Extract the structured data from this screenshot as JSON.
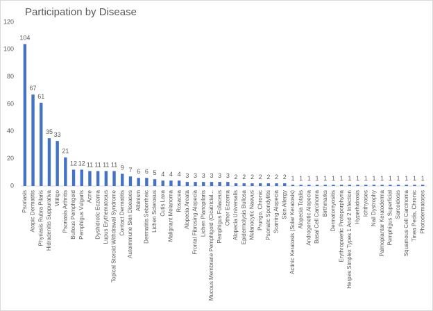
{
  "chart_data": {
    "type": "bar",
    "title": "Participation by Disease",
    "categories": [
      "Psoriasis",
      "Atopic Dermatitis",
      "Phyriasis Rubra Pilaris",
      "Hidradenitis Suppurativa",
      "Vitiligo",
      "Psoriasis Arthritis",
      "Bullous Pemphigoid",
      "Pemphigus Vulgaris",
      "Acne",
      "Dyshidrotic Eczema",
      "Lupus Erythematosus",
      "Topical Steroid Withdrawal Syndrome",
      "Contact Dermatitis",
      "Autoimmune Skin Diseases",
      "Albinism",
      "Dermatitis Seborrheic",
      "Lichen Sclerosus",
      "Cutis Laxa",
      "Malignant Melanoma",
      "Rosacea",
      "Alopecia Areata",
      "Frontal Fibrosing Alopecia",
      "Lichen Planopilaris",
      "Mucous Membrane Pemphigoid (Cicatricial...",
      "Pemphigus Foliaceus",
      "Other Eczema",
      "Alopecia Universalis",
      "Epidermolysis Bullosa",
      "Melanocytic Naevus",
      "Prurigo, Chronic",
      "Psoriatic Spondylitis",
      "Scarring Alopecia",
      "Skin Allergy",
      "Actinic Keratosis (Solar Keratosis)",
      "Alopecia Totalis",
      "Androgenetic Alopecia",
      "Basal Cell Carcinoma",
      "Birthmarks",
      "Dermatomyositis",
      "Erythropoietic Protoporphyria",
      "Herpes Simplex Types 1 And 2 Infection",
      "Hyperhidrosis",
      "Ichthyoses",
      "Nail Dystrophy",
      "Palmoplantar Keratoderma",
      "Pemphigus Superficial",
      "Sarcoidosis",
      "Squamous Cell Carcinoma",
      "Tinea Pedis, Chronic",
      "Photodermatoses"
    ],
    "values": [
      104,
      67,
      61,
      35,
      33,
      21,
      12,
      12,
      11,
      11,
      11,
      11,
      9,
      7,
      6,
      6,
      5,
      4,
      4,
      4,
      3,
      3,
      3,
      3,
      3,
      3,
      2,
      2,
      2,
      2,
      2,
      2,
      2,
      1,
      1,
      1,
      1,
      1,
      1,
      1,
      1,
      1,
      1,
      1,
      1,
      1,
      1,
      1,
      1,
      1
    ],
    "color": "#4472c4",
    "ylim": [
      0,
      120
    ],
    "yticks": [
      0,
      20,
      40,
      60,
      80,
      100,
      120
    ],
    "grid": false
  }
}
